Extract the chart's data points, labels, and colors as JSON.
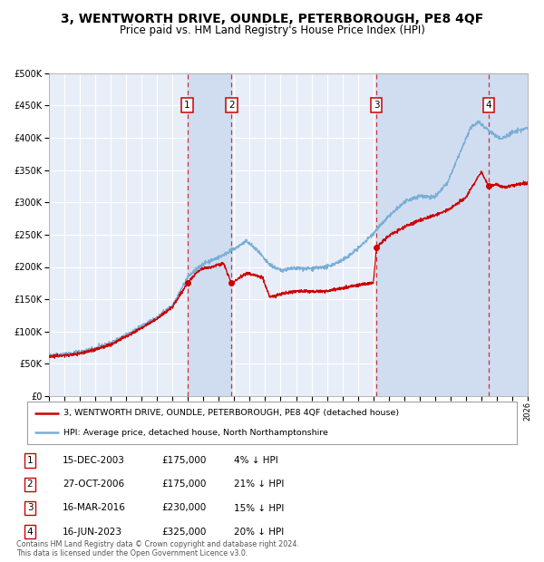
{
  "title": "3, WENTWORTH DRIVE, OUNDLE, PETERBOROUGH, PE8 4QF",
  "subtitle": "Price paid vs. HM Land Registry's House Price Index (HPI)",
  "bg_color": "#ffffff",
  "plot_bg_color": "#e8eef8",
  "grid_color": "#ffffff",
  "hpi_line_color": "#7aaed6",
  "price_line_color": "#cc0000",
  "sale_marker_color": "#cc0000",
  "dashed_line_color": "#cc3333",
  "shade_color": "#d0ddf0",
  "sales": [
    {
      "num": 1,
      "date_label": "15-DEC-2003",
      "x_year": 2003.96,
      "price": 175000,
      "pct": "4%",
      "dir": "↓"
    },
    {
      "num": 2,
      "date_label": "27-OCT-2006",
      "x_year": 2006.82,
      "price": 175000,
      "pct": "21%",
      "dir": "↓"
    },
    {
      "num": 3,
      "date_label": "16-MAR-2016",
      "x_year": 2016.21,
      "price": 230000,
      "pct": "15%",
      "dir": "↓"
    },
    {
      "num": 4,
      "date_label": "16-JUN-2023",
      "x_year": 2023.46,
      "price": 325000,
      "pct": "20%",
      "dir": "↓"
    }
  ],
  "ylim": [
    0,
    500000
  ],
  "yticks": [
    0,
    50000,
    100000,
    150000,
    200000,
    250000,
    300000,
    350000,
    400000,
    450000,
    500000
  ],
  "xlim": [
    1995,
    2026
  ],
  "xticks": [
    1995,
    1996,
    1997,
    1998,
    1999,
    2000,
    2001,
    2002,
    2003,
    2004,
    2005,
    2006,
    2007,
    2008,
    2009,
    2010,
    2011,
    2012,
    2013,
    2014,
    2015,
    2016,
    2017,
    2018,
    2019,
    2020,
    2021,
    2022,
    2023,
    2024,
    2025,
    2026
  ],
  "legend_line1": "3, WENTWORTH DRIVE, OUNDLE, PETERBOROUGH, PE8 4QF (detached house)",
  "legend_line2": "HPI: Average price, detached house, North Northamptonshire",
  "footer": "Contains HM Land Registry data © Crown copyright and database right 2024.\nThis data is licensed under the Open Government Licence v3.0."
}
